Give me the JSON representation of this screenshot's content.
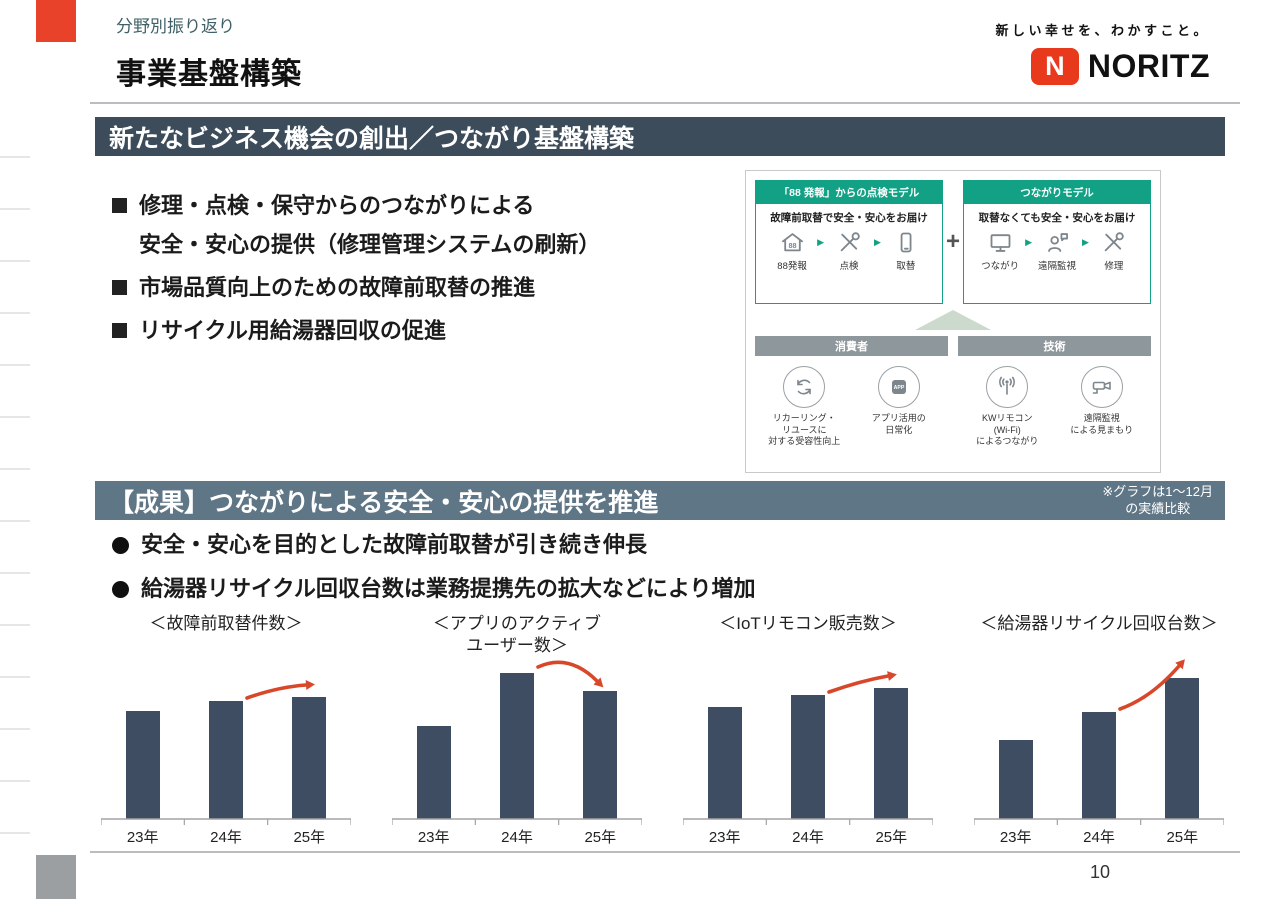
{
  "colors": {
    "accent_red": "#e8432a",
    "brand_red": "#e8391d",
    "banner_dark": "#3d4c5a",
    "banner_light": "#5f7686",
    "green": "#12a184",
    "panel_gray_header": "#8e979c",
    "bar": "#3e4d62",
    "arrow": "#d9472b",
    "icon_gray": "#7d868c"
  },
  "header": {
    "eyebrow": "分野別振り返り",
    "title": "事業基盤構築",
    "tagline": "新しい幸せを、わかすこと。",
    "brand": "NORITZ",
    "brand_mark": "N"
  },
  "section1": {
    "banner": "新たなビジネス機会の創出／つながり基盤構築",
    "bullets": [
      "修理・点検・保守からのつながりによる\n安全・安心の提供（修理管理システムの刷新）",
      "市場品質向上のための故障前取替の推進",
      "リサイクル用給湯器回収の促進"
    ]
  },
  "diagram": {
    "flow_arrow": "▶",
    "plus": "+",
    "top_left": {
      "header": "「88 発報」からの点検モデル",
      "subtitle": "故障前取替で安全・安心をお届け",
      "items": [
        {
          "icon": "house-88-icon",
          "label": "88発報"
        },
        {
          "icon": "tools-icon",
          "label": "点検"
        },
        {
          "icon": "phone-icon",
          "label": "取替"
        }
      ]
    },
    "top_right": {
      "header": "つながりモデル",
      "subtitle": "取替なくても安全・安心をお届け",
      "items": [
        {
          "icon": "monitor-icon",
          "label": "つながり"
        },
        {
          "icon": "person-chat-icon",
          "label": "遠隔監視"
        },
        {
          "icon": "tools-icon",
          "label": "修理"
        }
      ]
    },
    "bottom_left": {
      "header": "消費者",
      "items": [
        {
          "icon": "recycle-icon",
          "label": "リカーリング・\nリユースに\n対する受容性向上"
        },
        {
          "icon": "app-icon",
          "label": "アプリ活用の\n日常化"
        }
      ]
    },
    "bottom_right": {
      "header": "技術",
      "items": [
        {
          "icon": "antenna-icon",
          "label": "KWリモコン\n(Wi-Fi)\nによるつながり"
        },
        {
          "icon": "camera-icon",
          "label": "遠隔監視\nによる見まもり"
        }
      ]
    }
  },
  "section2": {
    "banner": "【成果】つながりによる安全・安心の提供を推進",
    "note": "※グラフは1～12月\nの実績比較",
    "bullets": [
      "安全・安心を目的とした故障前取替が引き続き伸長",
      "給湯器リサイクル回収台数は業務提携先の拡大などにより増加"
    ]
  },
  "chart_data": [
    {
      "type": "bar",
      "title": "＜故障前取替件数＞",
      "categories": [
        "23年",
        "24年",
        "25年"
      ],
      "values": [
        108,
        118,
        122
      ],
      "ylim": [
        0,
        158
      ],
      "values_note": "relative bar heights – no value axis shown",
      "annotation": "red growth arrow from 24年 to 25年",
      "trend": "up"
    },
    {
      "type": "bar",
      "title": "＜アプリのアクティブ\nユーザー数＞",
      "categories": [
        "23年",
        "24年",
        "25年"
      ],
      "values": [
        93,
        146,
        128
      ],
      "ylim": [
        0,
        158
      ],
      "values_note": "relative bar heights – no value axis shown",
      "annotation": "red arrow from 24年 to 25年 (slight decline)",
      "trend": "slight-down"
    },
    {
      "type": "bar",
      "title": "＜IoTリモコン販売数＞",
      "categories": [
        "23年",
        "24年",
        "25年"
      ],
      "values": [
        112,
        124,
        131
      ],
      "ylim": [
        0,
        158
      ],
      "values_note": "relative bar heights – no value axis shown",
      "annotation": "red growth arrow from 24年 to 25年",
      "trend": "up"
    },
    {
      "type": "bar",
      "title": "＜給湯器リサイクル回収台数＞",
      "categories": [
        "23年",
        "24年",
        "25年"
      ],
      "values": [
        79,
        107,
        141
      ],
      "ylim": [
        0,
        158
      ],
      "values_note": "relative bar heights – no value axis shown",
      "annotation": "red growth arrow from 24年 to 25年",
      "trend": "up"
    }
  ],
  "footer": {
    "page": "10"
  }
}
